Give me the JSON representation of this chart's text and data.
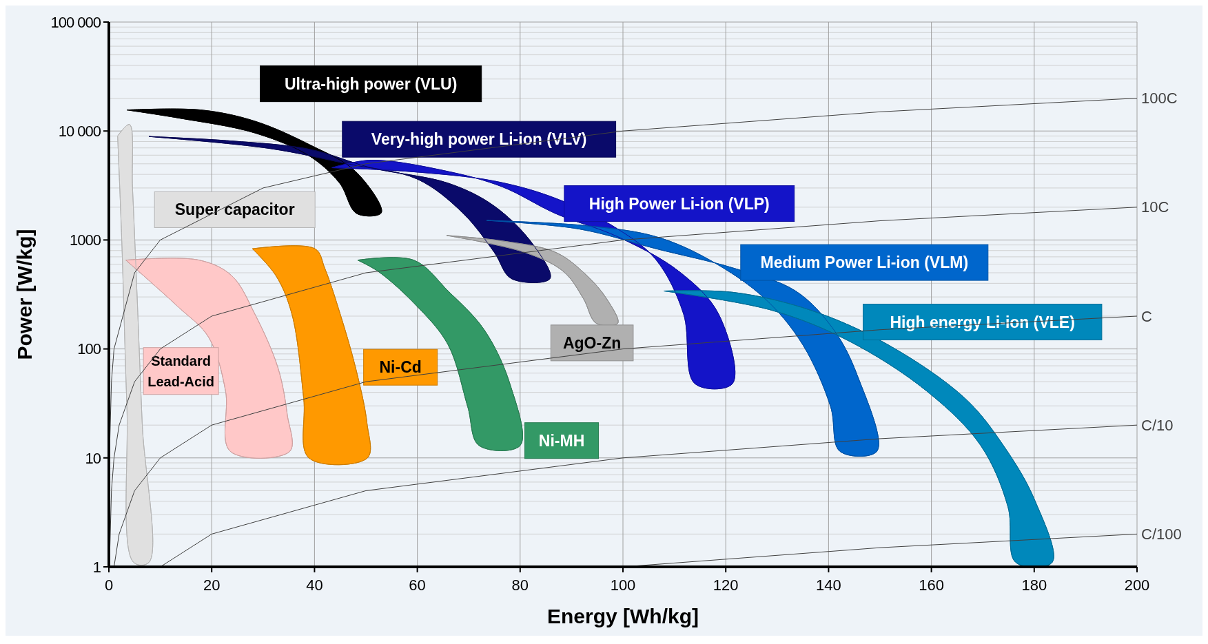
{
  "chart_data": {
    "type": "area",
    "xlabel": "Energy [Wh/kg]",
    "ylabel": "Power [W/kg]",
    "log": "y",
    "grid": true,
    "xlim": [
      0,
      200
    ],
    "xticks": [
      0,
      20,
      40,
      60,
      80,
      100,
      120,
      140,
      160,
      180,
      200
    ],
    "ylim": [
      1,
      100000
    ],
    "yticks": [
      1,
      10,
      100,
      1000,
      {
        "value": 10000,
        "label": "10 000"
      },
      {
        "value": 100000,
        "label": "100 000"
      }
    ],
    "series": [
      {
        "name": "Ultra-high power (VLU)",
        "color": "#000000",
        "x": [
          3.5,
          17.9,
          28.4,
          39,
          48,
          53,
          48.2,
          44.9,
          39,
          28.4,
          13.4,
          3.5
        ],
        "values": [
          15600,
          15600,
          12300,
          7500,
          4250,
          1780,
          1750,
          3320,
          5900,
          9600,
          13200,
          15600
        ]
      },
      {
        "name": "Very-high power Li-ion (VLV)",
        "color": "#0a0a6a",
        "x": [
          7.8,
          23.9,
          39,
          51,
          66,
          75,
          82.5,
          85.8,
          78.3,
          75,
          69,
          60,
          46.4,
          31.4,
          7.8
        ],
        "values": [
          8900,
          8100,
          6800,
          4600,
          3320,
          2040,
          910,
          442,
          442,
          767,
          1740,
          3620,
          5000,
          6900,
          8900
        ]
      },
      {
        "name": "Super capacitor",
        "color": "#e0e0e0",
        "x": [
          1.7,
          4,
          4.6,
          5.5,
          6.5,
          7.8,
          4.8,
          3.5,
          2.5,
          1.7
        ],
        "values": [
          9000,
          11500,
          3000,
          300,
          20,
          1.1,
          1.1,
          30,
          1000,
          9000
        ]
      },
      {
        "name": "High Power Li-ion (VLP)",
        "color": "#1414c8",
        "x": [
          43.4,
          51,
          66,
          76.5,
          87,
          99,
          111,
          118.6,
          121.3,
          114,
          111.8,
          106.5,
          99,
          87,
          75,
          58.5,
          43.4
        ],
        "values": [
          4600,
          5400,
          4250,
          3080,
          1740,
          1070,
          510,
          209,
          48,
          48,
          209,
          653,
          1260,
          2400,
          3470,
          4250,
          4600
        ]
      },
      {
        "name": "Medium Power Li-ion (VLM)",
        "color": "#0066cc",
        "x": [
          73.5,
          91.5,
          106.5,
          121.6,
          133.6,
          141,
          145.6,
          149.4,
          142.2,
          140.4,
          135,
          127.6,
          117,
          106.5,
          93,
          73.5
        ],
        "values": [
          1510,
          1260,
          830,
          550,
          340,
          150,
          57,
          11.5,
          11.5,
          29.5,
          109,
          290,
          650,
          1070,
          1350,
          1510
        ]
      },
      {
        "name": "High energy Li-ion (VLE)",
        "color": "#0088bb",
        "x": [
          108,
          121.6,
          136.6,
          151.6,
          166.6,
          174,
          180,
          183.5,
          176.4,
          174.9,
          169.6,
          159.1,
          144,
          129,
          108
        ],
        "values": [
          340,
          330,
          226,
          109,
          35,
          13,
          4.2,
          1.1,
          1.1,
          3.55,
          13,
          41,
          118,
          226,
          340
        ]
      },
      {
        "name": "AgO-Zn",
        "color": "#b0b0b0",
        "x": [
          65.7,
          76.5,
          87,
          93,
          96.8,
          99,
          94.8,
          92.3,
          88.5,
          81,
          65.7
        ],
        "values": [
          1100,
          980,
          767,
          470,
          290,
          172,
          172,
          290,
          510,
          767,
          1100
        ]
      },
      {
        "name": "Standard Lead-Acid",
        "color": "#ffc8c8",
        "x": [
          3.3,
          17.6,
          23.9,
          28.4,
          32.9,
          34.7,
          35.2,
          23.6,
          22.7,
          19.4,
          13.4,
          3.3
        ],
        "values": [
          653,
          653,
          470,
          209,
          67,
          25,
          11.5,
          11.5,
          41,
          128,
          245,
          653
        ]
      },
      {
        "name": "Ni-Cd",
        "color": "#ff9900",
        "x": [
          27.9,
          40.1,
          42,
          45,
          48,
          50.2,
          50.3,
          38.9,
          37.9,
          35.6,
          32.5,
          27.9
        ],
        "values": [
          830,
          830,
          550,
          209,
          67,
          21,
          10,
          10,
          35,
          209,
          470,
          830
        ]
      },
      {
        "name": "Ni-MH",
        "color": "#339966",
        "x": [
          48.4,
          59.3,
          66,
          73,
          78,
          80,
          72,
          69.8,
          66,
          60,
          52.5,
          48.4
        ],
        "values": [
          653,
          653,
          340,
          150,
          48,
          13,
          13,
          29.5,
          109,
          245,
          510,
          653
        ]
      },
      {
        "type": "line",
        "name": "100C",
        "color": "#404040",
        "x": [
          0.01,
          0.1,
          0.5,
          1,
          5,
          10,
          30,
          50,
          100,
          150,
          200
        ],
        "values": [
          1,
          10,
          50,
          100,
          500,
          1000,
          3000,
          5000,
          10000,
          15000,
          20000
        ]
      },
      {
        "type": "line",
        "name": "10C",
        "color": "#404040",
        "x": [
          0.1,
          0.5,
          1,
          2,
          5,
          10,
          20,
          50,
          100,
          150,
          200
        ],
        "values": [
          1,
          5,
          10,
          20,
          50,
          100,
          200,
          500,
          1000,
          1500,
          2000
        ]
      },
      {
        "type": "line",
        "name": "C",
        "color": "#404040",
        "x": [
          1,
          2,
          5,
          10,
          20,
          50,
          100,
          150,
          200
        ],
        "values": [
          1,
          2,
          5,
          10,
          20,
          50,
          100,
          150,
          200
        ]
      },
      {
        "type": "line",
        "name": "C/10",
        "color": "#404040",
        "x": [
          10,
          20,
          50,
          100,
          150,
          200
        ],
        "values": [
          1,
          2,
          5,
          10,
          15,
          20
        ]
      },
      {
        "type": "line",
        "name": "C/100",
        "color": "#404040",
        "x": [
          100,
          150,
          200
        ],
        "values": [
          1,
          1.5,
          2
        ]
      }
    ]
  }
}
